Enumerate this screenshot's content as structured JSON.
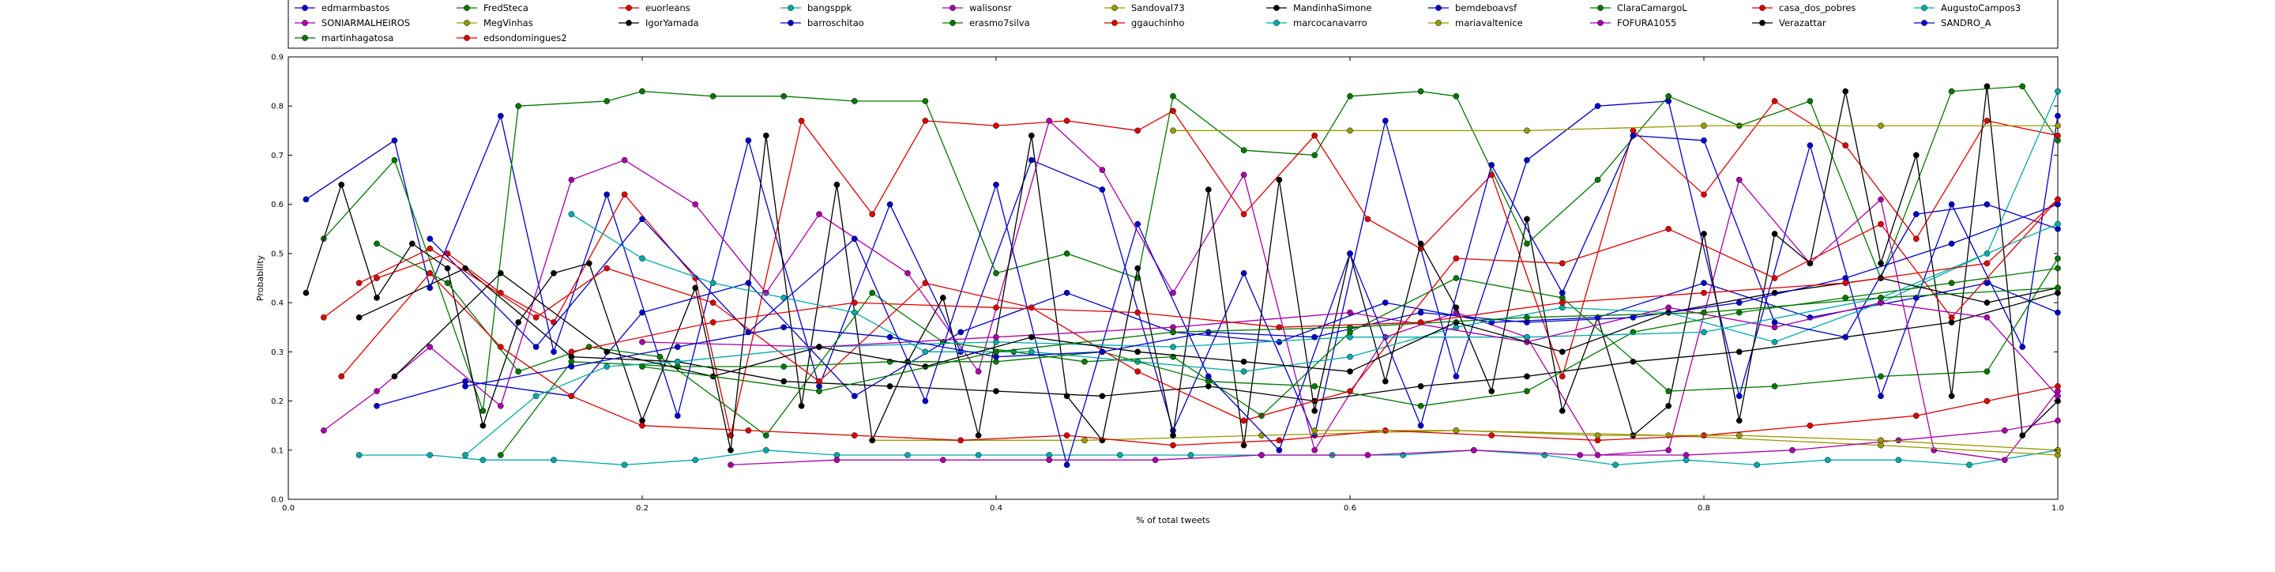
{
  "chart_data": {
    "type": "line",
    "title": "",
    "xlabel": "% of total tweets",
    "ylabel": "Probability",
    "xlim": [
      0,
      1
    ],
    "ylim": [
      0,
      0.9
    ],
    "xticks": [
      "0.0",
      "0.2",
      "0.4",
      "0.6",
      "0.8",
      "1.0"
    ],
    "yticks": [
      "0.0",
      "0.1",
      "0.2",
      "0.3",
      "0.4",
      "0.5",
      "0.6",
      "0.7",
      "0.8",
      "0.9"
    ],
    "grid": false,
    "legend_position": "top",
    "series": [
      {
        "name": "edmarmbastos",
        "color": "#0000cc",
        "x": [
          0.01,
          0.06,
          0.08,
          0.12,
          0.15,
          0.18,
          0.22,
          0.26,
          0.3,
          0.34,
          0.38,
          0.42,
          0.46,
          0.5,
          0.54,
          0.58,
          0.62,
          0.66,
          0.7,
          0.74,
          0.78,
          0.82,
          0.86,
          0.9,
          0.94,
          0.98,
          1.0
        ],
        "y": [
          0.61,
          0.73,
          0.43,
          0.78,
          0.3,
          0.62,
          0.17,
          0.73,
          0.23,
          0.6,
          0.3,
          0.69,
          0.63,
          0.14,
          0.46,
          0.13,
          0.77,
          0.25,
          0.69,
          0.8,
          0.81,
          0.21,
          0.72,
          0.21,
          0.6,
          0.31,
          0.78
        ]
      },
      {
        "name": "FredSteca",
        "color": "#007700",
        "x": [
          0.02,
          0.06,
          0.11,
          0.13,
          0.18,
          0.2,
          0.24,
          0.28,
          0.32,
          0.36,
          0.4,
          0.44,
          0.48,
          0.5,
          0.54,
          0.58,
          0.6,
          0.64,
          0.66,
          0.7,
          0.74,
          0.78,
          0.82,
          0.86,
          0.9,
          0.94,
          0.98,
          1.0
        ],
        "y": [
          0.53,
          0.69,
          0.18,
          0.8,
          0.81,
          0.83,
          0.82,
          0.82,
          0.81,
          0.81,
          0.46,
          0.5,
          0.45,
          0.82,
          0.71,
          0.7,
          0.82,
          0.83,
          0.82,
          0.52,
          0.65,
          0.82,
          0.76,
          0.81,
          0.45,
          0.83,
          0.84,
          0.73
        ]
      },
      {
        "name": "euorleans",
        "color": "#dd0000",
        "x": [
          0.02,
          0.05,
          0.09,
          0.12,
          0.15,
          0.19,
          0.23,
          0.25,
          0.29,
          0.33,
          0.36,
          0.4,
          0.44,
          0.48,
          0.5,
          0.54,
          0.58,
          0.61,
          0.64,
          0.68,
          0.72,
          0.76,
          0.8,
          0.84,
          0.88,
          0.92,
          0.96,
          1.0
        ],
        "y": [
          0.37,
          0.45,
          0.5,
          0.42,
          0.36,
          0.62,
          0.45,
          0.13,
          0.77,
          0.58,
          0.77,
          0.76,
          0.77,
          0.75,
          0.79,
          0.58,
          0.74,
          0.57,
          0.51,
          0.66,
          0.25,
          0.75,
          0.62,
          0.81,
          0.72,
          0.53,
          0.77,
          0.74
        ]
      },
      {
        "name": "bangsppk",
        "color": "#00aaaa",
        "x": [
          0.04,
          0.08,
          0.11,
          0.15,
          0.19,
          0.23,
          0.27,
          0.31,
          0.35,
          0.39,
          0.43,
          0.47,
          0.51,
          0.55,
          0.59,
          0.63,
          0.67,
          0.71,
          0.75,
          0.79,
          0.83,
          0.87,
          0.91,
          0.95,
          1.0
        ],
        "y": [
          0.09,
          0.09,
          0.08,
          0.08,
          0.07,
          0.08,
          0.1,
          0.09,
          0.09,
          0.09,
          0.09,
          0.09,
          0.09,
          0.09,
          0.09,
          0.09,
          0.1,
          0.09,
          0.07,
          0.08,
          0.07,
          0.08,
          0.08,
          0.07,
          0.1
        ]
      },
      {
        "name": "walisonsr",
        "color": "#aa00aa",
        "x": [
          0.02,
          0.05,
          0.08,
          0.12,
          0.16,
          0.19,
          0.23,
          0.27,
          0.3,
          0.35,
          0.39,
          0.43,
          0.46,
          0.5,
          0.54,
          0.58,
          0.62,
          0.66,
          0.7,
          0.74,
          0.78,
          0.82,
          0.86,
          0.9,
          0.93,
          0.97,
          1.0
        ],
        "y": [
          0.14,
          0.22,
          0.31,
          0.19,
          0.65,
          0.69,
          0.6,
          0.42,
          0.58,
          0.46,
          0.26,
          0.77,
          0.67,
          0.42,
          0.66,
          0.1,
          0.33,
          0.38,
          0.33,
          0.09,
          0.1,
          0.65,
          0.48,
          0.61,
          0.1,
          0.08,
          0.22
        ]
      },
      {
        "name": "Sandoval73",
        "color": "#999900",
        "x": [
          0.33,
          0.45,
          0.55,
          0.66,
          0.78,
          0.9,
          1.0
        ],
        "y": [
          0.12,
          0.12,
          0.13,
          0.14,
          0.13,
          0.11,
          0.09
        ]
      },
      {
        "name": "MandinhaSimone",
        "color": "#000000",
        "x": [
          0.01,
          0.03,
          0.05,
          0.07,
          0.09,
          0.11,
          0.13,
          0.15,
          0.17,
          0.2,
          0.23,
          0.25,
          0.27,
          0.29,
          0.31,
          0.33,
          0.35,
          0.37,
          0.39,
          0.42,
          0.44,
          0.46,
          0.48,
          0.5,
          0.52,
          0.54,
          0.56,
          0.58,
          0.6,
          0.62,
          0.64,
          0.66,
          0.68,
          0.7,
          0.72,
          0.74,
          0.76,
          0.78,
          0.8,
          0.82,
          0.84,
          0.86,
          0.88,
          0.9,
          0.92,
          0.94,
          0.96,
          0.98,
          1.0
        ],
        "y": [
          0.42,
          0.64,
          0.41,
          0.52,
          0.47,
          0.15,
          0.36,
          0.46,
          0.48,
          0.16,
          0.43,
          0.1,
          0.74,
          0.19,
          0.64,
          0.12,
          0.28,
          0.41,
          0.13,
          0.74,
          0.21,
          0.12,
          0.47,
          0.13,
          0.63,
          0.11,
          0.65,
          0.18,
          0.5,
          0.24,
          0.52,
          0.39,
          0.22,
          0.57,
          0.18,
          0.37,
          0.13,
          0.19,
          0.54,
          0.16,
          0.54,
          0.48,
          0.83,
          0.48,
          0.7,
          0.21,
          0.84,
          0.13,
          0.2
        ]
      },
      {
        "name": "bemdeboavsf",
        "color": "#0000cc",
        "x": [
          0.05,
          0.1,
          0.16,
          0.2,
          0.26,
          0.32,
          0.38,
          0.44,
          0.5,
          0.56,
          0.62,
          0.68,
          0.74,
          0.8,
          0.86,
          0.92,
          0.96,
          1.0
        ],
        "y": [
          0.19,
          0.24,
          0.21,
          0.38,
          0.44,
          0.21,
          0.34,
          0.42,
          0.34,
          0.32,
          0.4,
          0.36,
          0.37,
          0.44,
          0.37,
          0.41,
          0.44,
          0.38
        ]
      },
      {
        "name": "ClaraCamargoL",
        "color": "#007700",
        "x": [
          0.05,
          0.09,
          0.13,
          0.17,
          0.21,
          0.27,
          0.33,
          0.37,
          0.41,
          0.45,
          0.5,
          0.55,
          0.6,
          0.66,
          0.72,
          0.78,
          0.84,
          0.9,
          0.96,
          1.0
        ],
        "y": [
          0.52,
          0.44,
          0.26,
          0.31,
          0.29,
          0.13,
          0.42,
          0.32,
          0.3,
          0.28,
          0.29,
          0.17,
          0.34,
          0.45,
          0.41,
          0.22,
          0.23,
          0.25,
          0.26,
          0.49
        ]
      },
      {
        "name": "casa_dos_pobres",
        "color": "#dd0000",
        "x": [
          0.03,
          0.08,
          0.12,
          0.16,
          0.2,
          0.26,
          0.32,
          0.38,
          0.44,
          0.5,
          0.56,
          0.62,
          0.68,
          0.74,
          0.8,
          0.86,
          0.92,
          0.96,
          1.0
        ],
        "y": [
          0.25,
          0.46,
          0.31,
          0.21,
          0.15,
          0.14,
          0.13,
          0.12,
          0.13,
          0.11,
          0.12,
          0.14,
          0.13,
          0.12,
          0.13,
          0.15,
          0.17,
          0.2,
          0.23
        ]
      },
      {
        "name": "AugustoCampos3",
        "color": "#00aaaa",
        "x": [
          0.16,
          0.2,
          0.24,
          0.28,
          0.32,
          0.36,
          0.42,
          0.48,
          0.54,
          0.6,
          0.66,
          0.72,
          0.78,
          0.84,
          0.9,
          0.96,
          1.0
        ],
        "y": [
          0.58,
          0.49,
          0.44,
          0.41,
          0.38,
          0.3,
          0.3,
          0.28,
          0.26,
          0.29,
          0.35,
          0.39,
          0.38,
          0.32,
          0.4,
          0.5,
          0.83
        ]
      },
      {
        "name": "SONIARMALHEIROS",
        "color": "#aa00aa",
        "x": [
          0.25,
          0.31,
          0.37,
          0.43,
          0.49,
          0.55,
          0.61,
          0.67,
          0.73,
          0.79,
          0.85,
          0.91,
          0.97,
          1.0
        ],
        "y": [
          0.07,
          0.08,
          0.08,
          0.08,
          0.08,
          0.09,
          0.09,
          0.1,
          0.09,
          0.09,
          0.1,
          0.12,
          0.14,
          0.16
        ]
      },
      {
        "name": "MegVinhas",
        "color": "#999900",
        "x": [
          0.5,
          0.6,
          0.7,
          0.8,
          0.9,
          1.0
        ],
        "y": [
          0.75,
          0.75,
          0.75,
          0.76,
          0.76,
          0.76
        ]
      },
      {
        "name": "IgorYamada",
        "color": "#000000",
        "x": [
          0.04,
          0.1,
          0.16,
          0.22,
          0.28,
          0.34,
          0.4,
          0.46,
          0.52,
          0.58,
          0.64,
          0.7,
          0.76,
          0.82,
          0.88,
          0.94,
          1.0
        ],
        "y": [
          0.37,
          0.47,
          0.29,
          0.28,
          0.24,
          0.23,
          0.22,
          0.21,
          0.23,
          0.2,
          0.23,
          0.25,
          0.28,
          0.3,
          0.33,
          0.36,
          0.42
        ]
      },
      {
        "name": "barroschitao",
        "color": "#0000cc",
        "x": [
          0.08,
          0.14,
          0.2,
          0.26,
          0.32,
          0.36,
          0.4,
          0.44,
          0.48,
          0.52,
          0.56,
          0.6,
          0.64,
          0.68,
          0.72,
          0.76,
          0.8,
          0.84,
          0.88,
          0.92,
          0.96,
          1.0
        ],
        "y": [
          0.53,
          0.31,
          0.57,
          0.34,
          0.53,
          0.2,
          0.64,
          0.07,
          0.56,
          0.25,
          0.1,
          0.5,
          0.15,
          0.68,
          0.42,
          0.74,
          0.73,
          0.36,
          0.33,
          0.58,
          0.6,
          0.55
        ]
      },
      {
        "name": "erasmo7silva",
        "color": "#007700",
        "x": [
          0.12,
          0.16,
          0.22,
          0.28,
          0.34,
          0.4,
          0.46,
          0.52,
          0.58,
          0.64,
          0.7,
          0.76,
          0.82,
          0.88,
          0.94,
          1.0
        ],
        "y": [
          0.09,
          0.28,
          0.27,
          0.27,
          0.28,
          0.28,
          0.3,
          0.24,
          0.23,
          0.19,
          0.22,
          0.34,
          0.38,
          0.41,
          0.44,
          0.47
        ]
      },
      {
        "name": "ggauchinho",
        "color": "#dd0000",
        "x": [
          0.04,
          0.08,
          0.14,
          0.18,
          0.24,
          0.3,
          0.36,
          0.42,
          0.48,
          0.54,
          0.6,
          0.66,
          0.72,
          0.78,
          0.84,
          0.9,
          0.94,
          1.0
        ],
        "y": [
          0.44,
          0.51,
          0.37,
          0.47,
          0.4,
          0.24,
          0.44,
          0.39,
          0.26,
          0.16,
          0.22,
          0.49,
          0.48,
          0.55,
          0.45,
          0.56,
          0.37,
          0.61
        ]
      },
      {
        "name": "marcocanavarro",
        "color": "#00aaaa",
        "x": [
          0.1,
          0.14,
          0.18,
          0.22,
          0.3,
          0.4,
          0.5,
          0.6,
          0.7,
          0.8,
          0.9,
          1.0
        ],
        "y": [
          0.09,
          0.21,
          0.27,
          0.28,
          0.31,
          0.32,
          0.31,
          0.33,
          0.33,
          0.34,
          0.41,
          0.56
        ]
      },
      {
        "name": "mariavaltenice",
        "color": "#999900",
        "x": [
          0.58,
          0.66,
          0.74,
          0.82,
          0.9,
          1.0
        ],
        "y": [
          0.14,
          0.14,
          0.13,
          0.13,
          0.12,
          0.1
        ]
      },
      {
        "name": "FOFURA1055",
        "color": "#aa00aa",
        "x": [
          0.2,
          0.3,
          0.4,
          0.5,
          0.6,
          0.7,
          0.78,
          0.84,
          0.9,
          0.96,
          1.0
        ],
        "y": [
          0.32,
          0.31,
          0.33,
          0.35,
          0.38,
          0.32,
          0.39,
          0.35,
          0.4,
          0.37,
          0.21
        ]
      },
      {
        "name": "Verazattar",
        "color": "#000000",
        "x": [
          0.06,
          0.12,
          0.18,
          0.24,
          0.3,
          0.36,
          0.42,
          0.48,
          0.54,
          0.6,
          0.66,
          0.72,
          0.78,
          0.84,
          0.9,
          0.96,
          1.0
        ],
        "y": [
          0.25,
          0.46,
          0.3,
          0.25,
          0.31,
          0.27,
          0.33,
          0.3,
          0.28,
          0.26,
          0.36,
          0.3,
          0.38,
          0.42,
          0.45,
          0.4,
          0.43
        ]
      },
      {
        "name": "SANDRO_A",
        "color": "#0000cc",
        "x": [
          0.1,
          0.16,
          0.22,
          0.28,
          0.34,
          0.4,
          0.46,
          0.52,
          0.58,
          0.64,
          0.7,
          0.76,
          0.82,
          0.88,
          0.94,
          1.0
        ],
        "y": [
          0.23,
          0.27,
          0.31,
          0.35,
          0.33,
          0.29,
          0.3,
          0.34,
          0.33,
          0.38,
          0.36,
          0.37,
          0.4,
          0.45,
          0.52,
          0.6
        ]
      },
      {
        "name": "martinhagatosa",
        "color": "#007700",
        "x": [
          0.2,
          0.3,
          0.4,
          0.5,
          0.6,
          0.7,
          0.8,
          0.9,
          1.0
        ],
        "y": [
          0.27,
          0.22,
          0.3,
          0.34,
          0.35,
          0.37,
          0.38,
          0.41,
          0.43
        ]
      },
      {
        "name": "edsondomingues2",
        "color": "#dd0000",
        "x": [
          0.16,
          0.24,
          0.32,
          0.4,
          0.48,
          0.56,
          0.64,
          0.72,
          0.8,
          0.88,
          0.96,
          1.0
        ],
        "y": [
          0.3,
          0.36,
          0.4,
          0.39,
          0.38,
          0.35,
          0.36,
          0.4,
          0.42,
          0.44,
          0.48,
          0.61
        ]
      }
    ]
  }
}
